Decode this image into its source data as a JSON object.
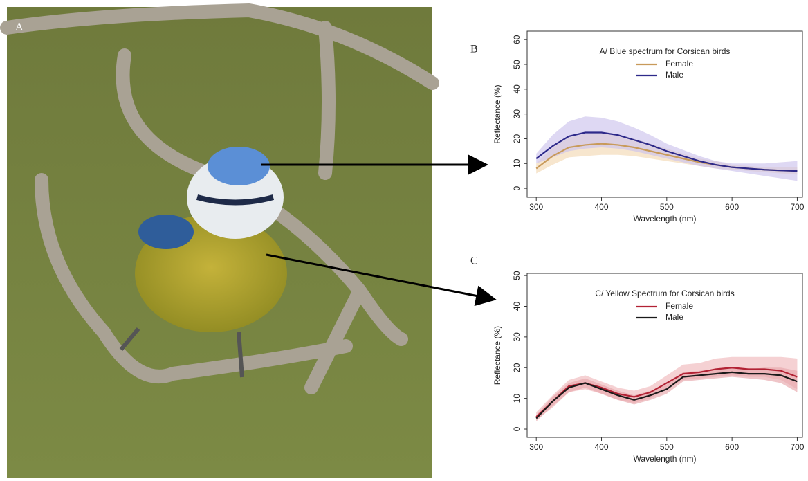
{
  "photo": {
    "label": "A"
  },
  "chart_data": [
    {
      "type": "line",
      "panel_label": "B",
      "title": "A/ Blue spectrum for Corsican birds",
      "x_label": "Wavelength (nm)",
      "y_label": "Reflectance (%)",
      "x": [
        300,
        325,
        350,
        375,
        400,
        425,
        450,
        475,
        500,
        525,
        550,
        575,
        600,
        625,
        650,
        675,
        700
      ],
      "xlim": [
        286,
        708
      ],
      "xticks": [
        300,
        400,
        500,
        600,
        700
      ],
      "ylim": [
        -3.6,
        63.4
      ],
      "yticks": [
        0,
        10,
        20,
        30,
        40,
        50,
        60
      ],
      "series": [
        {
          "name": "Female",
          "color": "#c89a5a",
          "band_color": "#f2d9b3",
          "values": [
            8,
            13,
            16.5,
            17.5,
            18,
            17.5,
            16.5,
            15,
            13.5,
            12,
            10.5,
            9.5,
            8.5,
            8,
            7.5,
            7.2,
            7
          ],
          "lower": [
            6,
            9.5,
            12.5,
            13,
            13.5,
            13.5,
            13,
            12,
            11,
            10,
            9,
            8,
            7.5,
            7,
            6.5,
            6,
            5.5
          ],
          "upper": [
            10,
            16.5,
            20.5,
            22,
            22.5,
            21.5,
            20,
            18,
            16,
            14,
            12,
            11,
            9.5,
            9,
            8.5,
            8.4,
            8.5
          ]
        },
        {
          "name": "Male",
          "color": "#2e2a8a",
          "band_color": "#cdc3ec",
          "values": [
            12,
            17,
            21,
            22.5,
            22.5,
            21.5,
            19.5,
            17.5,
            15,
            13,
            11,
            9.5,
            8.5,
            8,
            7.5,
            7.2,
            7
          ],
          "lower": [
            10,
            12.5,
            15,
            16,
            16.5,
            16,
            15,
            13.5,
            12,
            10.5,
            9,
            8,
            7,
            6,
            5,
            4,
            3
          ],
          "upper": [
            14,
            21.5,
            27,
            29,
            28.5,
            27,
            24.5,
            21.5,
            18,
            15.5,
            13,
            11,
            10,
            10,
            10,
            10.5,
            11
          ]
        }
      ]
    },
    {
      "type": "line",
      "panel_label": "C",
      "title": "C/ Yellow Spectrum for Corsican birds",
      "x_label": "Wavelength (nm)",
      "y_label": "Reflectance (%)",
      "x": [
        300,
        325,
        350,
        375,
        400,
        425,
        450,
        475,
        500,
        525,
        550,
        575,
        600,
        625,
        650,
        675,
        700
      ],
      "xlim": [
        286,
        708
      ],
      "xticks": [
        300,
        400,
        500,
        600,
        700
      ],
      "ylim": [
        -2.7,
        50.7
      ],
      "yticks": [
        0,
        10,
        20,
        30,
        40,
        50
      ],
      "series": [
        {
          "name": "Female",
          "color": "#b22234",
          "band_color": "#f0b8bc",
          "values": [
            4,
            9,
            14,
            15,
            13.5,
            11.5,
            10.5,
            12,
            15,
            18,
            18.5,
            19.5,
            20,
            19.5,
            19.5,
            19,
            17
          ],
          "lower": [
            3,
            7,
            12,
            13,
            11.5,
            9.5,
            8.5,
            10,
            13,
            16,
            16.5,
            17,
            17.5,
            17,
            17,
            16,
            13
          ],
          "upper": [
            5.5,
            11,
            16,
            17.5,
            15.5,
            13.5,
            12.5,
            14,
            17.5,
            21,
            21.5,
            23,
            23.5,
            23.5,
            23.5,
            23.5,
            23
          ]
        },
        {
          "name": "Male",
          "color": "#1a1a1a",
          "band_color": "#e6a6ab",
          "values": [
            3.5,
            9,
            13.5,
            15,
            13,
            11,
            9.5,
            11,
            13,
            17,
            17.5,
            18,
            18.5,
            18,
            18,
            17.5,
            15.5
          ],
          "lower": [
            2.5,
            7.5,
            12,
            13.5,
            11.5,
            9.5,
            8,
            9.5,
            11.5,
            15.5,
            16,
            16.5,
            17,
            16.5,
            16,
            15,
            12
          ],
          "upper": [
            4.5,
            10.5,
            15,
            16.5,
            14.5,
            12.5,
            11,
            12.5,
            14.5,
            18.5,
            19,
            19.5,
            20,
            19.5,
            20,
            20,
            19
          ]
        }
      ]
    }
  ]
}
